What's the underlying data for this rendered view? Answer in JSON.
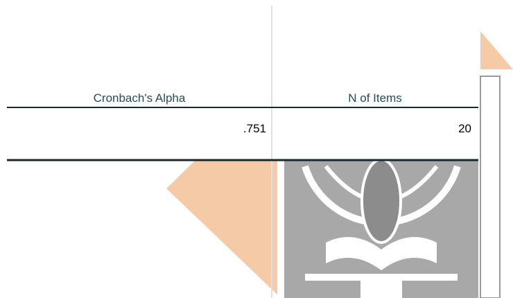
{
  "table": {
    "headers": [
      "Cronbach's Alpha",
      "N of Items"
    ],
    "rows": [
      [
        ".751",
        20
      ]
    ]
  }
}
